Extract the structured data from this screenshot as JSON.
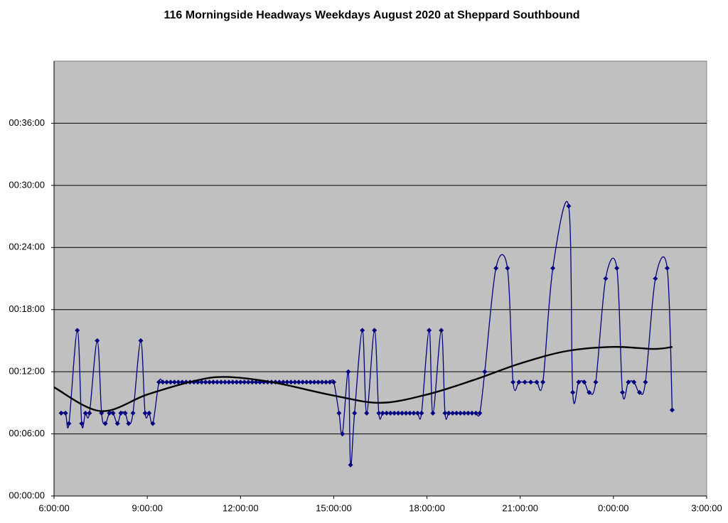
{
  "chart_data": {
    "type": "line",
    "title": "116 Morningside Headways Weekdays August 2020 at Sheppard Southbound",
    "xlim": [
      6,
      27
    ],
    "xticks": [
      {
        "value": 6,
        "label": "6:00:00"
      },
      {
        "value": 9,
        "label": "9:00:00"
      },
      {
        "value": 12,
        "label": "12:00:00"
      },
      {
        "value": 15,
        "label": "15:00:00"
      },
      {
        "value": 18,
        "label": "18:00:00"
      },
      {
        "value": 21,
        "label": "21:00:00"
      },
      {
        "value": 24,
        "label": "0:00:00"
      },
      {
        "value": 27,
        "label": "3:00:00"
      }
    ],
    "ylim": [
      0,
      42
    ],
    "yticks": [
      {
        "value": 0,
        "label": "00:00:00"
      },
      {
        "value": 6,
        "label": "00:06:00"
      },
      {
        "value": 12,
        "label": "00:12:00"
      },
      {
        "value": 18,
        "label": "00:18:00"
      },
      {
        "value": 24,
        "label": "00:24:00"
      },
      {
        "value": 30,
        "label": "00:30:00"
      },
      {
        "value": 36,
        "label": "00:36:00"
      }
    ],
    "grid": true,
    "series": [
      {
        "color": "#000080",
        "markers": true,
        "x": [
          6.23,
          6.37,
          6.48,
          6.75,
          6.89,
          7.01,
          7.14,
          7.39,
          7.53,
          7.65,
          7.78,
          7.9,
          8.04,
          8.15,
          8.29,
          8.4,
          8.54,
          8.79,
          8.93,
          9.06,
          9.18,
          9.375,
          9.5,
          9.625,
          9.75,
          9.875,
          10,
          10.125,
          10.25,
          10.375,
          10.5,
          10.625,
          10.75,
          10.875,
          11,
          11.125,
          11.25,
          11.375,
          11.5,
          11.625,
          11.75,
          11.875,
          12,
          12.125,
          12.25,
          12.375,
          12.5,
          12.625,
          12.75,
          12.875,
          13,
          13.125,
          13.25,
          13.375,
          13.5,
          13.625,
          13.75,
          13.875,
          14,
          14.125,
          14.25,
          14.375,
          14.5,
          14.625,
          14.75,
          14.875,
          15,
          15.17,
          15.28,
          15.47,
          15.54,
          15.67,
          15.92,
          16.06,
          16.31,
          16.45,
          16.575,
          16.7,
          16.825,
          16.95,
          17.075,
          17.2,
          17.325,
          17.45,
          17.575,
          17.7,
          17.825,
          18.07,
          18.19,
          18.46,
          18.58,
          18.7,
          18.825,
          18.95,
          19.075,
          19.2,
          19.325,
          19.45,
          19.575,
          19.7,
          19.86,
          20.22,
          20.59,
          20.77,
          20.96,
          21.15,
          21.34,
          21.53,
          21.73,
          22.05,
          22.56,
          22.69,
          22.88,
          23.06,
          23.22,
          23.43,
          23.75,
          24.11,
          24.29,
          24.48,
          24.66,
          24.84,
          25.03,
          25.35,
          25.73,
          25.89
        ],
        "values": [
          8,
          8,
          7,
          16,
          7,
          8,
          8,
          15,
          8,
          7,
          8,
          8,
          7,
          8,
          8,
          7,
          8,
          15,
          8,
          8,
          7,
          11,
          11,
          11,
          11,
          11,
          11,
          11,
          11,
          11,
          11,
          11,
          11,
          11,
          11,
          11,
          11,
          11,
          11,
          11,
          11,
          11,
          11,
          11,
          11,
          11,
          11,
          11,
          11,
          11,
          11,
          11,
          11,
          11,
          11,
          11,
          11,
          11,
          11,
          11,
          11,
          11,
          11,
          11,
          11,
          11,
          11,
          8,
          6,
          12,
          3,
          8,
          16,
          8,
          16,
          8,
          8,
          8,
          8,
          8,
          8,
          8,
          8,
          8,
          8,
          8,
          8,
          16,
          8,
          16,
          8,
          8,
          8,
          8,
          8,
          8,
          8,
          8,
          8,
          8,
          12,
          22,
          22,
          11,
          11,
          11,
          11,
          11,
          11,
          22,
          28,
          10,
          11,
          11,
          10,
          11,
          21,
          22,
          10,
          11,
          11,
          10,
          11,
          21,
          22,
          8.3
        ]
      },
      {
        "color": "#000000",
        "markers": false,
        "x": [
          6,
          7.5,
          9,
          10.5,
          11.5,
          13,
          15,
          16.5,
          18,
          19.5,
          21,
          22.5,
          24,
          25.3,
          25.9
        ],
        "values": [
          10.5,
          8.2,
          9.8,
          11.1,
          11.5,
          11.0,
          9.7,
          9.0,
          9.8,
          11.2,
          12.8,
          14.0,
          14.4,
          14.2,
          14.4
        ]
      }
    ]
  }
}
